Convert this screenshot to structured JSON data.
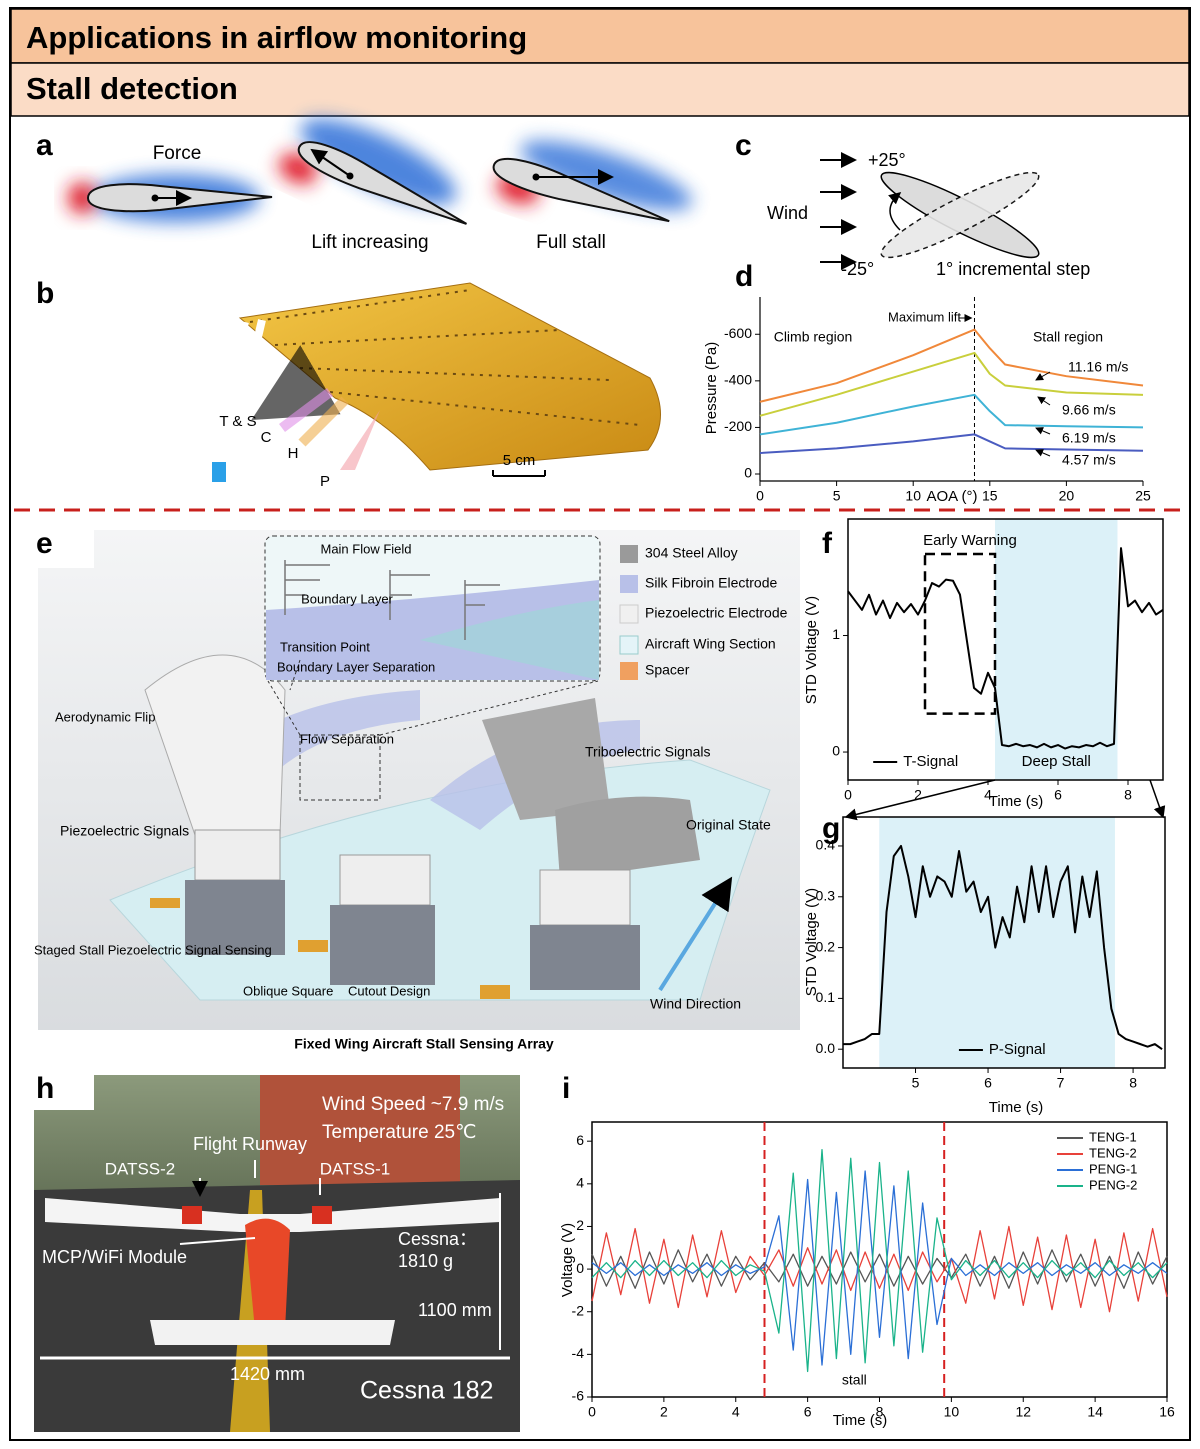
{
  "header": {
    "title": "Applications in airflow monitoring",
    "subtitle": "Stall detection"
  },
  "panel_labels": [
    "a",
    "b",
    "c",
    "d",
    "e",
    "f",
    "g",
    "h",
    "i"
  ],
  "panel_a": {
    "labels": [
      "Force",
      "Lift increasing",
      "Full stall"
    ]
  },
  "panel_b": {
    "labels": [
      "T & S",
      "C",
      "H",
      "P"
    ],
    "scale_bar": "5 cm"
  },
  "panel_c": {
    "labels": [
      "+25°",
      "Wind",
      "-25°",
      "1° incremental step"
    ]
  },
  "panel_e": {
    "legend": [
      "304 Steel Alloy",
      "Silk Fibroin Electrode",
      "Piezoelectric Electrode",
      "Aircraft Wing Section",
      "Spacer"
    ],
    "labels": [
      "Main Flow Field",
      "Boundary Layer",
      "Transition Point",
      "Boundary Layer Separation",
      "Aerodynamic Flip",
      "Flow Separation",
      "Triboelectric Signals",
      "Piezoelectric Signals",
      "Original State",
      "Staged Stall Piezoelectric Signal Sensing",
      "Oblique Square",
      "Cutout Design",
      "Wind Direction"
    ],
    "caption": "Fixed Wing Aircraft Stall Sensing Array"
  },
  "panel_h": {
    "labels": [
      "Wind Speed ~7.9 m/s",
      "Temperature 25℃",
      "Flight Runway",
      "DATSS-2",
      "DATSS-1",
      "MCP/WiFi Module",
      "Cessna：",
      "1810 g",
      "1100 mm",
      "1420 mm",
      "Cessna 182"
    ]
  },
  "chart_data": [
    {
      "type": "line",
      "x": [
        0,
        5,
        10,
        14,
        15,
        16,
        20,
        25
      ],
      "series": [
        {
          "name": "11.16 m/s",
          "color": "#f0883a",
          "values": [
            -310,
            -390,
            -510,
            -620,
            -540,
            -470,
            -420,
            -380
          ]
        },
        {
          "name": "9.66 m/s",
          "color": "#c9cf3c",
          "values": [
            -250,
            -340,
            -440,
            -520,
            -430,
            -380,
            -350,
            -340
          ]
        },
        {
          "name": "6.19 m/s",
          "color": "#3fb3d6",
          "values": [
            -170,
            -220,
            -290,
            -340,
            -270,
            -210,
            -205,
            -200
          ]
        },
        {
          "name": "4.57 m/s",
          "color": "#4a5cc0",
          "values": [
            -90,
            -110,
            -140,
            -170,
            -140,
            -110,
            -105,
            -100
          ]
        }
      ],
      "xlim": [
        0,
        25
      ],
      "ylim": [
        30,
        -760
      ],
      "xticks": [
        0,
        5,
        10,
        15,
        20,
        25
      ],
      "yticks": [
        0,
        -200,
        -400,
        -600
      ],
      "xlabel": "AOA (°)",
      "ylabel": "Pressure (Pa)",
      "vline": {
        "x": 14,
        "label": "Maximum lift"
      },
      "annotations": [
        "Climb region",
        "Stall region"
      ]
    },
    {
      "type": "line",
      "x": [
        0,
        0.2,
        0.4,
        0.6,
        0.8,
        1.0,
        1.2,
        1.4,
        1.6,
        1.8,
        2.0,
        2.2,
        2.4,
        2.6,
        2.8,
        3.0,
        3.2,
        3.4,
        3.6,
        3.8,
        4.0,
        4.2,
        4.4,
        4.6,
        4.8,
        5.0,
        5.2,
        5.4,
        5.6,
        5.8,
        6.0,
        6.2,
        6.4,
        6.6,
        6.8,
        7.0,
        7.2,
        7.4,
        7.6,
        7.8,
        8.0,
        8.2,
        8.4,
        8.6,
        8.8,
        9.0
      ],
      "series": [
        {
          "name": "T-Signal",
          "color": "#000000",
          "values": [
            1.38,
            1.3,
            1.22,
            1.35,
            1.18,
            1.3,
            1.15,
            1.28,
            1.2,
            1.27,
            1.18,
            1.3,
            1.45,
            1.42,
            1.48,
            1.47,
            1.35,
            0.95,
            0.55,
            0.5,
            0.68,
            0.55,
            0.06,
            0.05,
            0.07,
            0.05,
            0.06,
            0.04,
            0.07,
            0.04,
            0.06,
            0.03,
            0.05,
            0.04,
            0.06,
            0.05,
            0.08,
            0.05,
            0.07,
            1.75,
            1.25,
            1.3,
            1.2,
            1.28,
            1.18,
            1.22
          ]
        }
      ],
      "xlim": [
        0,
        9
      ],
      "ylim": [
        -0.24,
        2.0
      ],
      "xticks": [
        0,
        2,
        4,
        6,
        8
      ],
      "yticks": [
        0,
        1
      ],
      "xlabel": "Time (s)",
      "ylabel": "STD Voltage (V)",
      "shaded": {
        "x": [
          4.2,
          7.7
        ],
        "label": "Deep Stall"
      },
      "box": {
        "x": [
          2.2,
          4.2
        ],
        "y": [
          0.33,
          1.7
        ],
        "label": "Early Warning"
      }
    },
    {
      "type": "line",
      "x": [
        4.0,
        4.1,
        4.2,
        4.3,
        4.4,
        4.5,
        4.6,
        4.7,
        4.8,
        4.9,
        5.0,
        5.1,
        5.2,
        5.3,
        5.4,
        5.5,
        5.6,
        5.7,
        5.8,
        5.9,
        6.0,
        6.1,
        6.2,
        6.3,
        6.4,
        6.5,
        6.6,
        6.7,
        6.8,
        6.9,
        7.0,
        7.1,
        7.2,
        7.3,
        7.4,
        7.5,
        7.6,
        7.7,
        7.8,
        7.9,
        8.0,
        8.1,
        8.2,
        8.3,
        8.4
      ],
      "series": [
        {
          "name": "P-Signal",
          "color": "#000000",
          "values": [
            0.01,
            0.01,
            0.015,
            0.02,
            0.03,
            0.03,
            0.27,
            0.38,
            0.4,
            0.34,
            0.26,
            0.36,
            0.3,
            0.34,
            0.33,
            0.3,
            0.39,
            0.31,
            0.33,
            0.27,
            0.3,
            0.2,
            0.26,
            0.22,
            0.32,
            0.25,
            0.36,
            0.27,
            0.36,
            0.26,
            0.33,
            0.36,
            0.23,
            0.34,
            0.26,
            0.35,
            0.2,
            0.08,
            0.03,
            0.02,
            0.015,
            0.01,
            0.005,
            0.01,
            0.0
          ]
        }
      ],
      "xlim": [
        4,
        8.44
      ],
      "ylim": [
        -0.037,
        0.457
      ],
      "xticks": [
        5,
        6,
        7,
        8
      ],
      "yticks": [
        {
          "value": 0,
          "label": "0.0"
        },
        0.1,
        0.2,
        0.3,
        0.4
      ],
      "xlabel": "Time (s)",
      "ylabel": "STD Voltage (V)",
      "shaded": {
        "x": [
          4.5,
          7.75
        ]
      }
    },
    {
      "type": "line",
      "x": [
        0,
        0.4,
        0.8,
        1.2,
        1.6,
        2.0,
        2.4,
        2.8,
        3.2,
        3.6,
        4.0,
        4.4,
        4.8,
        5.2,
        5.6,
        6.0,
        6.4,
        6.8,
        7.2,
        7.6,
        8.0,
        8.4,
        8.8,
        9.2,
        9.6,
        10.0,
        10.4,
        10.8,
        11.2,
        11.6,
        12.0,
        12.4,
        12.8,
        13.2,
        13.6,
        14.0,
        14.4,
        14.8,
        15.2,
        15.6,
        16.0
      ],
      "series": [
        {
          "name": "TENG-1",
          "color": "#555555",
          "values": [
            0.7,
            -0.8,
            0.6,
            -0.9,
            0.8,
            -0.7,
            0.9,
            -0.6,
            0.7,
            -0.8,
            0.6,
            -0.5,
            0.3,
            -0.6,
            0.7,
            -0.8,
            0.6,
            -0.7,
            0.8,
            -0.6,
            0.7,
            -0.8,
            0.6,
            -0.7,
            0.5,
            -0.4,
            0.7,
            -0.8,
            0.6,
            -0.9,
            0.8,
            -0.7,
            0.9,
            -0.6,
            0.7,
            -0.8,
            0.6,
            -0.9,
            0.8,
            -0.7,
            0.6
          ]
        },
        {
          "name": "TENG-2",
          "color": "#e8413a",
          "values": [
            -1.5,
            1.7,
            -1.2,
            1.9,
            -1.6,
            1.4,
            -1.8,
            1.6,
            -1.3,
            1.8,
            -1.1,
            0.6,
            -0.3,
            0.9,
            -0.8,
            1.0,
            -0.7,
            0.9,
            -1.0,
            0.8,
            -0.9,
            0.7,
            -1.0,
            0.8,
            -0.6,
            0.5,
            -1.6,
            1.8,
            -1.4,
            2.0,
            -1.7,
            1.5,
            -1.9,
            1.6,
            -1.8,
            1.4,
            -2.0,
            1.7,
            -1.5,
            1.9,
            -1.3
          ]
        },
        {
          "name": "PENG-1",
          "color": "#2b6fd6",
          "values": [
            0.3,
            -0.2,
            0.3,
            -0.3,
            0.2,
            -0.3,
            0.2,
            -0.2,
            0.3,
            -0.3,
            0.2,
            -0.2,
            0.1,
            2.5,
            -3.8,
            4.2,
            -4.5,
            3.6,
            -4.0,
            4.6,
            -3.2,
            3.9,
            -4.2,
            3.1,
            -2.6,
            0.5,
            -0.3,
            0.2,
            -0.3,
            0.3,
            -0.2,
            0.3,
            -0.3,
            0.2,
            -0.2,
            0.3,
            -0.3,
            0.2,
            -0.2,
            0.3,
            -0.2
          ]
        },
        {
          "name": "PENG-2",
          "color": "#1ab38a",
          "values": [
            -0.4,
            0.3,
            -0.4,
            0.4,
            -0.3,
            0.4,
            -0.3,
            0.3,
            -0.4,
            0.4,
            -0.3,
            0.2,
            -0.1,
            -3.0,
            4.5,
            -4.8,
            5.6,
            -4.2,
            5.2,
            -4.4,
            5.0,
            -3.6,
            4.6,
            -3.9,
            2.4,
            -0.5,
            0.4,
            -0.3,
            0.4,
            -0.4,
            0.3,
            -0.4,
            0.4,
            -0.3,
            0.3,
            -0.4,
            0.4,
            -0.3,
            0.3,
            -0.4,
            0.3
          ]
        }
      ],
      "xlim": [
        0,
        16
      ],
      "ylim": [
        -6,
        6.9
      ],
      "xticks": [
        0,
        2,
        4,
        6,
        8,
        10,
        12,
        14,
        16
      ],
      "yticks": [
        -6,
        -4,
        -2,
        0,
        2,
        4,
        6
      ],
      "xlabel": "Time (s)",
      "ylabel": "Voltage (V)",
      "vlines": {
        "x": [
          4.8,
          9.8
        ],
        "label": "stall"
      },
      "legend": "top-right"
    }
  ]
}
